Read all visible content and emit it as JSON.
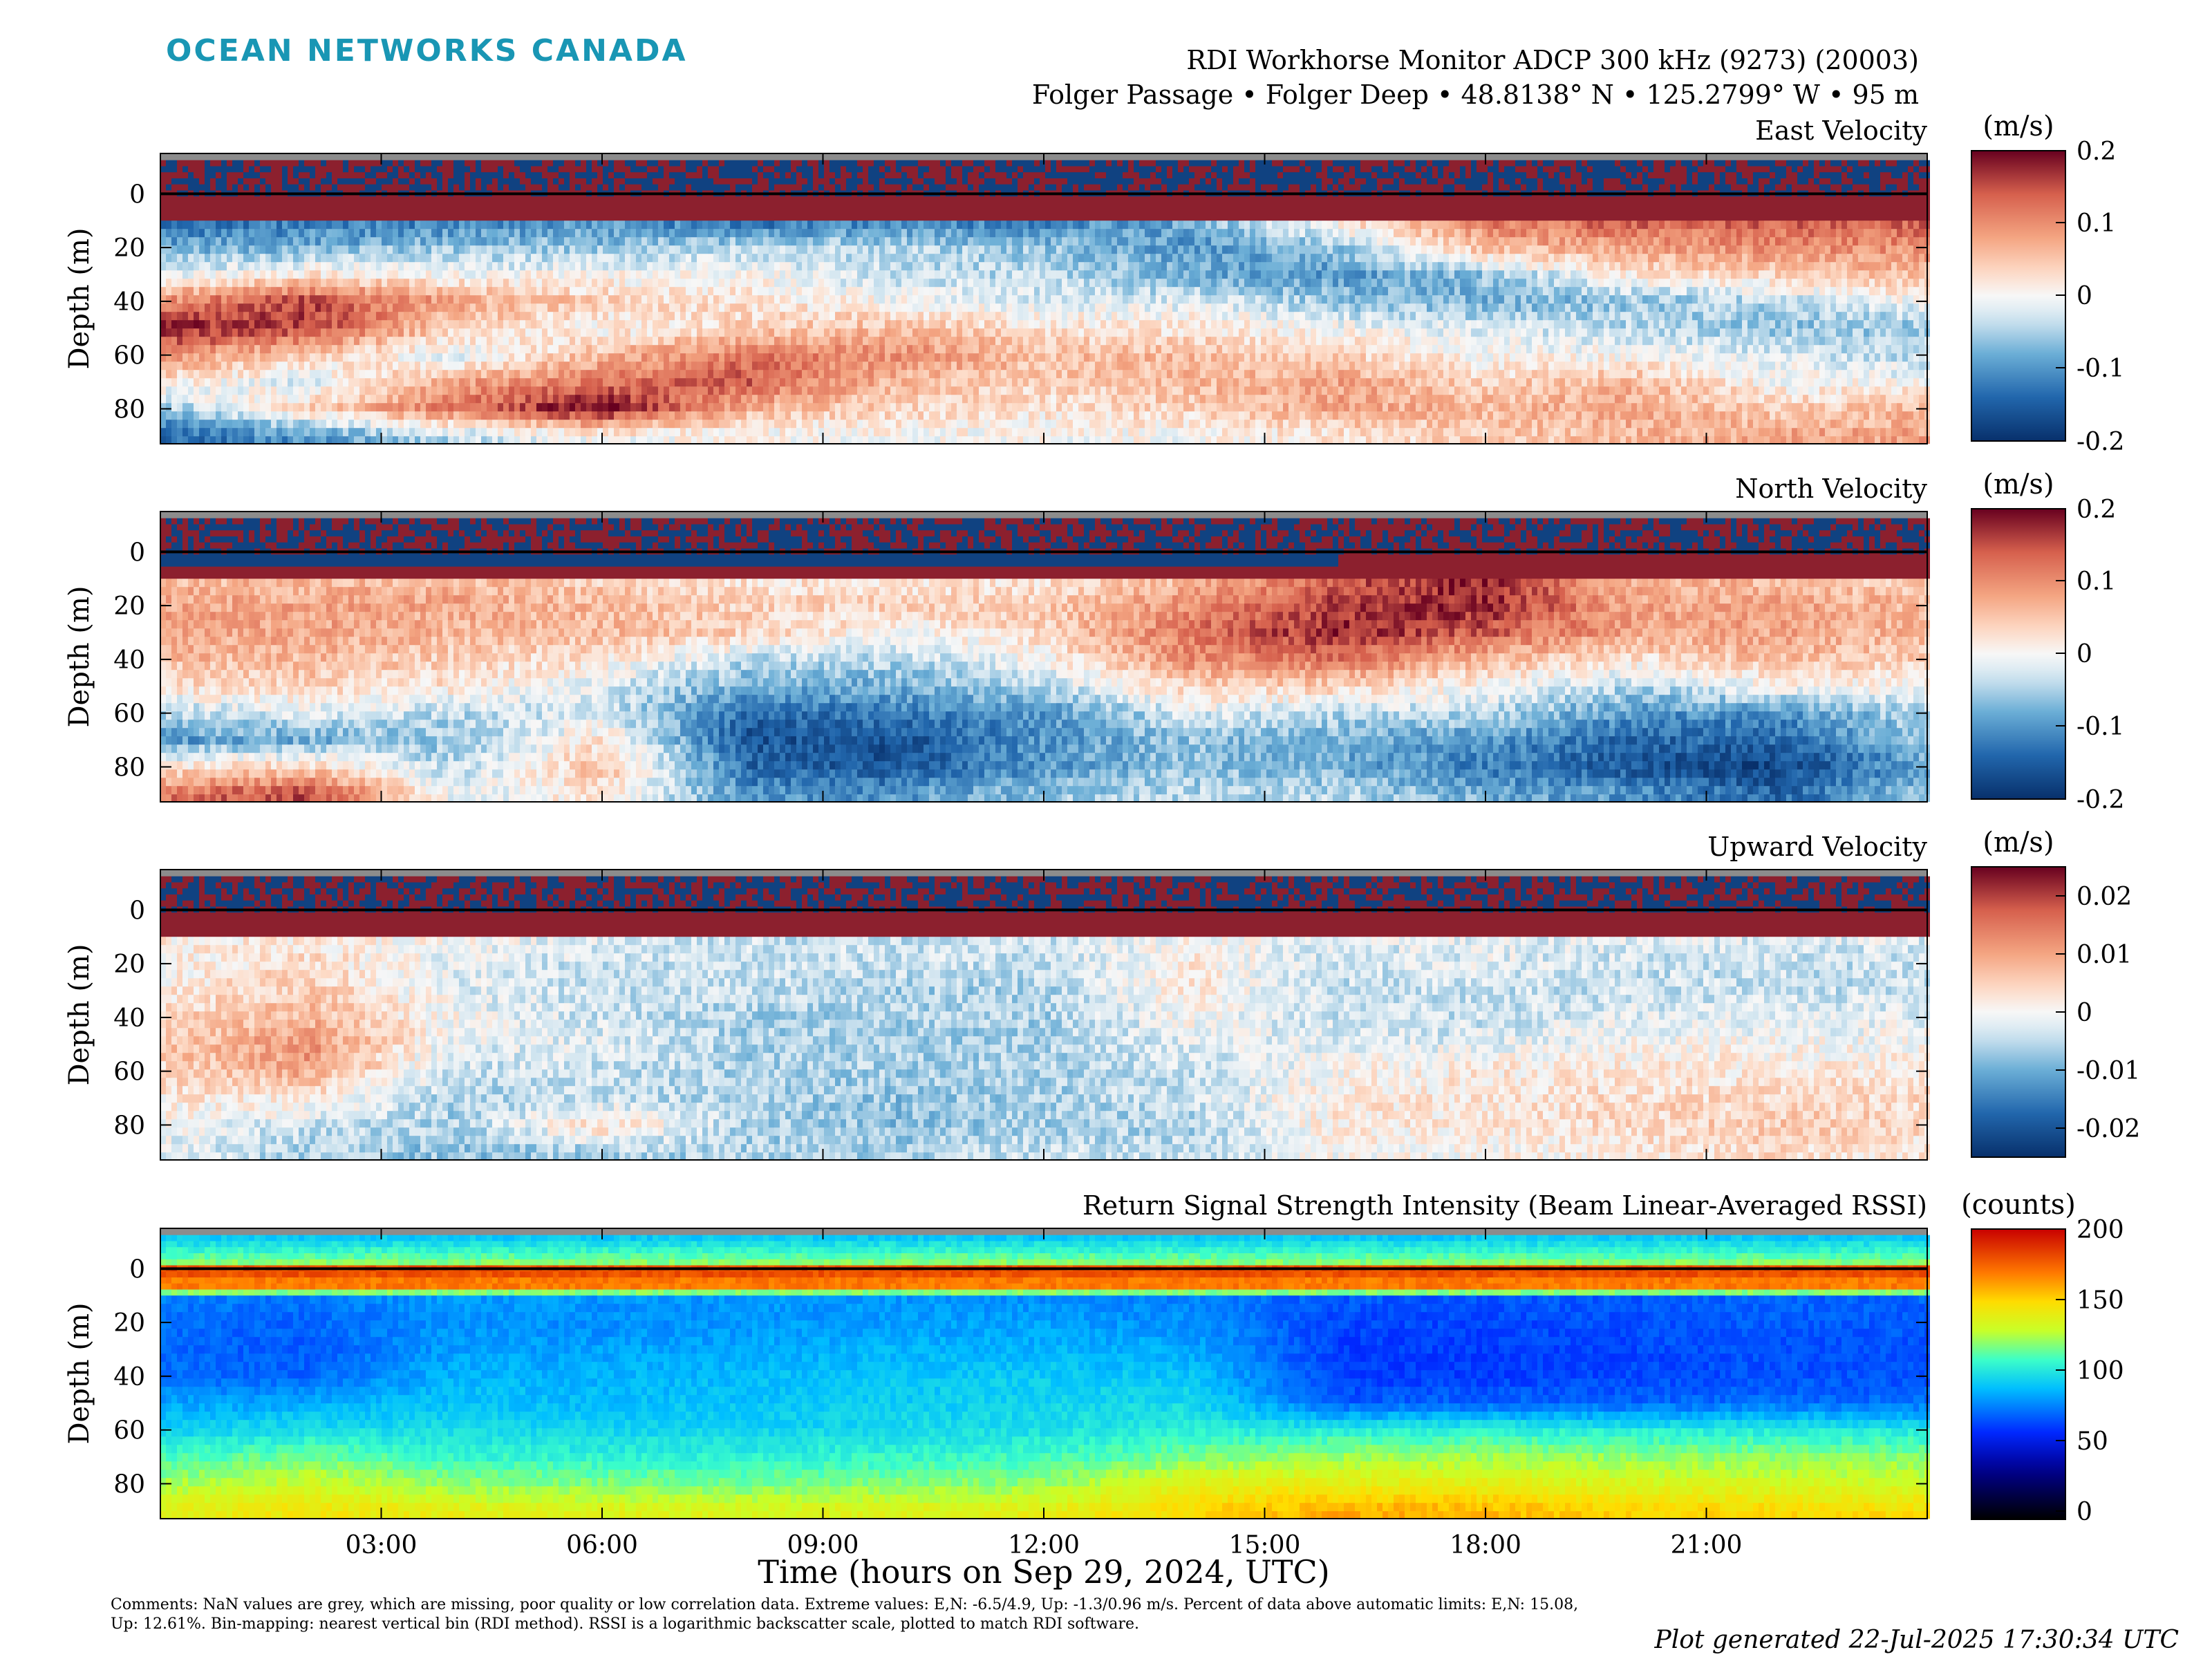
{
  "brand": "OCEAN NETWORKS CANADA",
  "header": {
    "title": "RDI Workhorse Monitor ADCP 300 kHz (9273) (20003)",
    "location": "Folger Passage • Folger Deep • 48.8138° N • 125.2799° W • 95 m"
  },
  "xlabel": "Time (hours on Sep 29, 2024, UTC)",
  "xticks": [
    "03:00",
    "06:00",
    "09:00",
    "12:00",
    "15:00",
    "18:00",
    "21:00"
  ],
  "xticks_hours": [
    3,
    6,
    9,
    12,
    15,
    18,
    21
  ],
  "xlim_hours": [
    0,
    24
  ],
  "comments": "Comments: NaN values are grey, which are missing, poor quality or low correlation data. Extreme values: E,N: -6.5/4.9, Up: -1.3/0.96 m/s. Percent of data above automatic limits: E,N: 15.08, Up: 12.61%. Bin-mapping: nearest vertical bin (RDI method). RSSI is a logarithmic backscatter scale, plotted to match RDI software.",
  "generated": "Plot generated 22-Jul-2025 17:30:34 UTC",
  "colors": {
    "nan": "#8c8c8c",
    "brand": "#1996b4"
  },
  "chart_data": [
    {
      "type": "heatmap",
      "title": "East Velocity",
      "ylabel": "Depth (m)",
      "ylim": [
        -15,
        93
      ],
      "yticks": [
        0,
        20,
        40,
        60,
        80
      ],
      "colorbar": {
        "label": "(m/s)",
        "range": [
          -0.2,
          0.2
        ],
        "ticks": [
          "0.2",
          "0.1",
          "0",
          "-0.1",
          "-0.2"
        ],
        "tick_values": [
          0.2,
          0.1,
          0,
          -0.1,
          -0.2
        ],
        "colormap": "diverging-blue-white-red"
      },
      "surface_line_depth": 0,
      "profile_hours": [
        0,
        2,
        4,
        6,
        8,
        10,
        12,
        14,
        16,
        18,
        20,
        22,
        24
      ],
      "profile_depths": [
        10,
        20,
        30,
        40,
        50,
        60,
        70,
        80,
        90
      ],
      "values": [
        [
          -0.14,
          -0.08,
          -0.02,
          0.1,
          0.18,
          0.1,
          0.02,
          -0.06,
          -0.14
        ],
        [
          -0.12,
          -0.08,
          0.02,
          0.16,
          0.16,
          0.04,
          -0.02,
          0.04,
          -0.1
        ],
        [
          -0.12,
          -0.06,
          0.0,
          0.08,
          0.04,
          -0.02,
          0.08,
          0.12,
          -0.04
        ],
        [
          -0.1,
          -0.06,
          0.0,
          0.04,
          0.0,
          0.06,
          0.12,
          0.2,
          0.0
        ],
        [
          -0.14,
          -0.04,
          0.0,
          0.02,
          0.04,
          0.12,
          0.14,
          0.06,
          0.0
        ],
        [
          -0.12,
          -0.04,
          -0.04,
          0.0,
          0.06,
          0.1,
          0.06,
          0.04,
          0.0
        ],
        [
          -0.12,
          -0.06,
          -0.04,
          -0.02,
          0.02,
          0.06,
          0.04,
          0.02,
          0.0
        ],
        [
          -0.08,
          -0.1,
          -0.08,
          -0.02,
          0.02,
          0.06,
          0.06,
          0.04,
          0.0
        ],
        [
          0.02,
          -0.06,
          -0.1,
          -0.06,
          0.0,
          0.04,
          0.08,
          0.08,
          0.02
        ],
        [
          0.12,
          0.06,
          -0.06,
          -0.08,
          -0.02,
          0.0,
          0.04,
          0.06,
          0.04
        ],
        [
          0.14,
          0.08,
          0.02,
          -0.06,
          -0.04,
          0.0,
          0.06,
          0.08,
          0.06
        ],
        [
          0.14,
          0.1,
          0.04,
          -0.04,
          -0.06,
          -0.02,
          0.0,
          0.04,
          0.08
        ],
        [
          0.14,
          0.1,
          0.06,
          0.0,
          -0.06,
          -0.04,
          0.0,
          0.06,
          0.08
        ]
      ]
    },
    {
      "type": "heatmap",
      "title": "North Velocity",
      "ylabel": "Depth (m)",
      "ylim": [
        -15,
        93
      ],
      "yticks": [
        0,
        20,
        40,
        60,
        80
      ],
      "colorbar": {
        "label": "(m/s)",
        "range": [
          -0.2,
          0.2
        ],
        "ticks": [
          "0.2",
          "0.1",
          "0",
          "-0.1",
          "-0.2"
        ],
        "tick_values": [
          0.2,
          0.1,
          0,
          -0.1,
          -0.2
        ],
        "colormap": "diverging-blue-white-red"
      },
      "surface_line_depth": 0,
      "profile_hours": [
        0,
        2,
        4,
        6,
        8,
        10,
        12,
        14,
        16,
        18,
        20,
        22,
        24
      ],
      "profile_depths": [
        10,
        20,
        30,
        40,
        50,
        60,
        70,
        80,
        90
      ],
      "values": [
        [
          0.06,
          0.08,
          0.08,
          0.06,
          0.02,
          -0.04,
          -0.1,
          0.02,
          0.12
        ],
        [
          0.06,
          0.08,
          0.08,
          0.06,
          0.04,
          -0.02,
          -0.08,
          0.04,
          0.16
        ],
        [
          0.06,
          0.08,
          0.06,
          0.04,
          0.02,
          -0.04,
          -0.06,
          -0.04,
          -0.02
        ],
        [
          0.04,
          0.06,
          0.06,
          0.02,
          -0.02,
          -0.02,
          0.02,
          0.06,
          0.02
        ],
        [
          0.02,
          0.04,
          0.04,
          -0.04,
          -0.08,
          -0.14,
          -0.16,
          -0.14,
          -0.1
        ],
        [
          0.02,
          0.04,
          0.0,
          -0.04,
          -0.08,
          -0.12,
          -0.16,
          -0.16,
          -0.1
        ],
        [
          0.02,
          0.04,
          0.04,
          0.0,
          -0.04,
          -0.1,
          -0.1,
          -0.1,
          -0.06
        ],
        [
          0.06,
          0.1,
          0.12,
          0.1,
          0.04,
          -0.02,
          -0.06,
          -0.06,
          -0.04
        ],
        [
          0.14,
          0.16,
          0.18,
          0.12,
          0.04,
          -0.04,
          -0.08,
          -0.08,
          -0.04
        ],
        [
          0.18,
          0.18,
          0.14,
          0.06,
          0.0,
          -0.04,
          -0.1,
          -0.12,
          -0.08
        ],
        [
          0.06,
          0.08,
          0.08,
          0.02,
          -0.04,
          -0.1,
          -0.14,
          -0.16,
          -0.1
        ],
        [
          0.06,
          0.08,
          0.08,
          0.06,
          0.0,
          -0.1,
          -0.14,
          -0.18,
          -0.14
        ],
        [
          0.04,
          0.06,
          0.06,
          0.04,
          0.0,
          -0.04,
          -0.06,
          -0.08,
          -0.06
        ]
      ]
    },
    {
      "type": "heatmap",
      "title": "Upward Velocity",
      "ylabel": "Depth (m)",
      "ylim": [
        -15,
        93
      ],
      "yticks": [
        0,
        20,
        40,
        60,
        80
      ],
      "colorbar": {
        "label": "(m/s)",
        "range": [
          -0.025,
          0.025
        ],
        "ticks": [
          "0.02",
          "0.01",
          "0",
          "-0.01",
          "-0.02"
        ],
        "tick_values": [
          0.02,
          0.01,
          0,
          -0.01,
          -0.02
        ],
        "colormap": "diverging-blue-white-red"
      },
      "surface_line_depth": 0,
      "profile_hours": [
        0,
        2,
        4,
        6,
        8,
        10,
        12,
        14,
        16,
        18,
        20,
        22,
        24
      ],
      "profile_depths": [
        10,
        20,
        30,
        40,
        50,
        60,
        70,
        80,
        90
      ],
      "values": [
        [
          0.002,
          0.0,
          0.002,
          0.004,
          0.006,
          0.004,
          0.002,
          0.0,
          -0.002
        ],
        [
          0.002,
          0.004,
          0.006,
          0.008,
          0.012,
          0.01,
          0.002,
          -0.004,
          -0.006
        ],
        [
          0.0,
          -0.002,
          -0.002,
          0.0,
          -0.002,
          -0.004,
          -0.006,
          -0.006,
          -0.008
        ],
        [
          -0.002,
          -0.004,
          -0.004,
          -0.004,
          -0.002,
          -0.004,
          -0.004,
          0.004,
          -0.006
        ],
        [
          -0.004,
          -0.004,
          -0.004,
          -0.006,
          -0.006,
          -0.006,
          -0.006,
          -0.006,
          -0.006
        ],
        [
          -0.004,
          -0.004,
          -0.006,
          -0.006,
          -0.006,
          -0.006,
          -0.008,
          -0.008,
          -0.006
        ],
        [
          -0.004,
          -0.004,
          -0.006,
          -0.006,
          -0.006,
          -0.006,
          -0.006,
          -0.006,
          -0.004
        ],
        [
          0.0,
          0.002,
          0.002,
          0.0,
          -0.002,
          -0.004,
          -0.004,
          -0.006,
          -0.004
        ],
        [
          -0.002,
          -0.004,
          -0.004,
          -0.004,
          -0.002,
          0.0,
          0.002,
          0.002,
          0.0
        ],
        [
          -0.002,
          -0.002,
          -0.004,
          -0.004,
          -0.002,
          0.002,
          0.002,
          0.002,
          0.0
        ],
        [
          -0.002,
          -0.004,
          -0.004,
          -0.002,
          0.0,
          0.002,
          0.004,
          0.004,
          0.002
        ],
        [
          -0.002,
          -0.004,
          -0.004,
          -0.002,
          0.0,
          0.002,
          0.004,
          0.006,
          0.004
        ],
        [
          -0.002,
          -0.004,
          -0.004,
          -0.002,
          0.0,
          0.002,
          0.004,
          0.004,
          0.002
        ]
      ]
    },
    {
      "type": "heatmap",
      "title": "Return Signal Strength Intensity (Beam Linear-Averaged RSSI)",
      "ylabel": "Depth (m)",
      "ylim": [
        -15,
        93
      ],
      "yticks": [
        0,
        20,
        40,
        60,
        80
      ],
      "colorbar": {
        "label": "(counts)",
        "range": [
          0,
          200
        ],
        "ticks": [
          "200",
          "150",
          "100",
          "50",
          "0"
        ],
        "tick_values": [
          200,
          150,
          100,
          50,
          0
        ],
        "colormap": "jet-like"
      },
      "surface_line_depth": 0,
      "profile_hours": [
        0,
        2,
        4,
        6,
        8,
        10,
        12,
        14,
        16,
        18,
        20,
        22,
        24
      ],
      "profile_depths": [
        10,
        20,
        30,
        40,
        50,
        60,
        70,
        80,
        90
      ],
      "values": [
        [
          78,
          74,
          72,
          74,
          84,
          95,
          110,
          125,
          140
        ],
        [
          76,
          72,
          70,
          72,
          86,
          100,
          118,
          132,
          145
        ],
        [
          84,
          82,
          84,
          88,
          92,
          98,
          108,
          122,
          140
        ],
        [
          82,
          80,
          84,
          88,
          90,
          96,
          106,
          120,
          138
        ],
        [
          82,
          82,
          86,
          90,
          92,
          96,
          106,
          118,
          136
        ],
        [
          82,
          84,
          88,
          92,
          94,
          98,
          108,
          120,
          138
        ],
        [
          80,
          84,
          88,
          94,
          96,
          100,
          110,
          122,
          140
        ],
        [
          78,
          80,
          86,
          92,
          98,
          104,
          118,
          140,
          150
        ],
        [
          70,
          66,
          64,
          64,
          70,
          104,
          124,
          140,
          160
        ],
        [
          70,
          66,
          64,
          64,
          72,
          106,
          124,
          140,
          158
        ],
        [
          70,
          68,
          66,
          66,
          72,
          104,
          122,
          136,
          150
        ],
        [
          72,
          70,
          68,
          68,
          74,
          104,
          122,
          134,
          150
        ],
        [
          72,
          70,
          68,
          68,
          74,
          102,
          120,
          132,
          148
        ]
      ]
    }
  ]
}
